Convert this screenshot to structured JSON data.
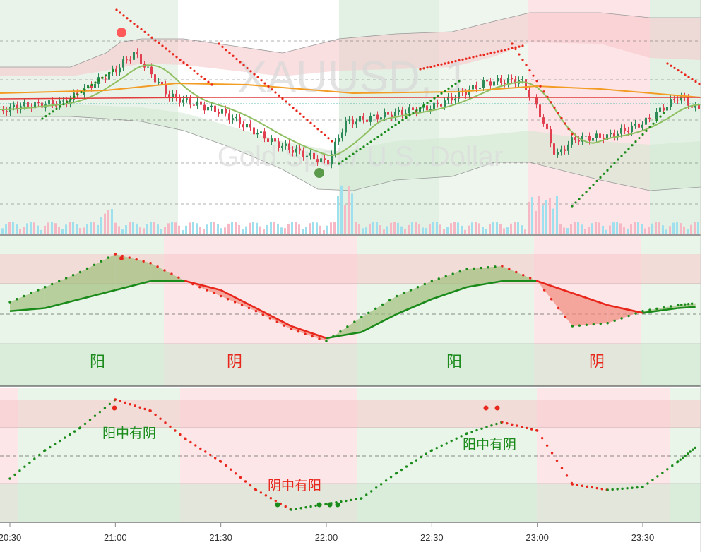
{
  "header": {
    "symbol_watermark": "XAUUSD, 1",
    "description_watermark": "Gold Spot / U.S. Dollar"
  },
  "colors": {
    "bull": "#26a69a",
    "candle_up": "#2e8b57",
    "candle_down": "#e04050",
    "green_zone": "#d7ecd9",
    "red_zone": "#fbd5d8",
    "light_green": "#eaf5ea",
    "light_red": "#fde6e8",
    "yin_line": "#e8261c",
    "yang_line": "#1a8a1a",
    "orange_ma": "#f39c24",
    "olive_ma": "#8fbf60",
    "vol_up": "#9fe0ee",
    "vol_down": "#f5b8c4"
  },
  "labels": {
    "yang": "阳",
    "yin": "阴",
    "yang_in_yin": "阳中有阴",
    "yin_in_yang": "阴中有阳"
  },
  "chart_data": [
    {
      "type": "candlestick",
      "title": "XAUUSD, 1",
      "x_axis_time_labels": [
        "20:30",
        "21:00",
        "21:30",
        "22:00",
        "22:30",
        "23:00",
        "23:30"
      ],
      "price_trend": [
        {
          "time": "20:30",
          "price": 52
        },
        {
          "time": "20:45",
          "price": 55
        },
        {
          "time": "21:00",
          "price": 80
        },
        {
          "time": "21:05",
          "price": 92
        },
        {
          "time": "21:15",
          "price": 60
        },
        {
          "time": "21:30",
          "price": 48
        },
        {
          "time": "21:45",
          "price": 25
        },
        {
          "time": "22:00",
          "price": 10
        },
        {
          "time": "22:05",
          "price": 40
        },
        {
          "time": "22:15",
          "price": 45
        },
        {
          "time": "22:30",
          "price": 52
        },
        {
          "time": "22:45",
          "price": 70
        },
        {
          "time": "22:55",
          "price": 72
        },
        {
          "time": "23:00",
          "price": 50
        },
        {
          "time": "23:05",
          "price": 15
        },
        {
          "time": "23:10",
          "price": 28
        },
        {
          "time": "23:20",
          "price": 30
        },
        {
          "time": "23:30",
          "price": 40
        },
        {
          "time": "23:40",
          "price": 60
        },
        {
          "time": "23:45",
          "price": 50
        }
      ]
    },
    {
      "type": "line",
      "title": "",
      "zones": [
        "阳",
        "阴",
        "阳",
        "阴"
      ],
      "x": [
        "20:30",
        "20:40",
        "20:50",
        "21:00",
        "21:10",
        "21:20",
        "21:30",
        "21:40",
        "21:50",
        "22:00",
        "22:10",
        "22:20",
        "22:30",
        "22:40",
        "22:50",
        "23:00",
        "23:10",
        "23:20",
        "23:30",
        "23:40",
        "23:45"
      ],
      "series": [
        {
          "values": [
            0.2,
            0.45,
            0.7,
            1.0,
            0.85,
            0.55,
            0.3,
            0.05,
            -0.25,
            -0.45,
            -0.05,
            0.3,
            0.55,
            0.75,
            0.8,
            0.55,
            -0.2,
            -0.15,
            0.05,
            0.15,
            0.18
          ]
        },
        {
          "values": [
            0.05,
            0.1,
            0.25,
            0.4,
            0.55,
            0.55,
            0.4,
            0.1,
            -0.2,
            -0.4,
            -0.3,
            0.0,
            0.25,
            0.45,
            0.55,
            0.55,
            0.35,
            0.15,
            0.02,
            0.1,
            0.12
          ]
        }
      ]
    },
    {
      "type": "line",
      "title": "",
      "annotations": [
        "阳中有阴",
        "阴中有阳",
        "阳中有阴"
      ],
      "x": [
        "20:30",
        "20:40",
        "20:50",
        "21:00",
        "21:10",
        "21:20",
        "21:30",
        "21:40",
        "21:50",
        "22:00",
        "22:10",
        "22:20",
        "22:30",
        "22:40",
        "22:50",
        "23:00",
        "23:10",
        "23:20",
        "23:30",
        "23:40",
        "23:45"
      ],
      "series": [
        {
          "values": [
            -0.4,
            0.1,
            0.5,
            1.0,
            0.8,
            0.3,
            -0.1,
            -0.6,
            -0.95,
            -0.85,
            -0.75,
            -0.3,
            0.1,
            0.4,
            0.6,
            0.45,
            -0.5,
            -0.6,
            -0.55,
            -0.1,
            0.15
          ]
        }
      ]
    }
  ]
}
